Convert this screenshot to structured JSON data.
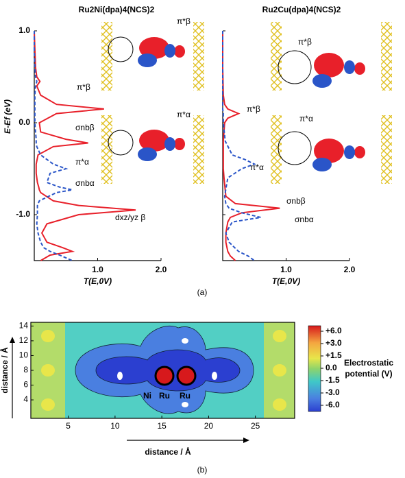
{
  "chart_data": [
    {
      "type": "line",
      "title": "Ru2Ni(dpa)4(NCS)2",
      "xlabel": "T(E,0V)",
      "ylabel": "E-Ef (eV)",
      "xlim": [
        0,
        2.0
      ],
      "xticks": [
        {
          "value": 1.0,
          "label": "1.0"
        },
        {
          "value": 2.0,
          "label": "2.0"
        }
      ],
      "ylim": [
        -1.5,
        1.0
      ],
      "yticks": [
        {
          "value": -1.0,
          "label": "-1.0"
        },
        {
          "value": 0.0,
          "label": "0.0"
        },
        {
          "value": 1.0,
          "label": "1.0"
        }
      ],
      "y": [
        1.0,
        0.8,
        0.6,
        0.5,
        0.45,
        0.4,
        0.3,
        0.2,
        0.15,
        0.1,
        0.0,
        -0.1,
        -0.18,
        -0.22,
        -0.26,
        -0.35,
        -0.45,
        -0.5,
        -0.55,
        -0.65,
        -0.7,
        -0.73,
        -0.76,
        -0.85,
        -0.9,
        -0.95,
        -1.0,
        -1.1,
        -1.2,
        -1.3,
        -1.36,
        -1.4,
        -1.44,
        -1.5
      ],
      "series": [
        {
          "name": "β",
          "color": "#e8202a",
          "dash": false,
          "values": [
            0,
            0.01,
            0.02,
            0.04,
            0.09,
            0.04,
            0.1,
            0.35,
            1.1,
            0.35,
            0.08,
            0.1,
            0.5,
            0.85,
            0.3,
            0.06,
            0.03,
            0.03,
            0.03,
            0.05,
            0.07,
            0.08,
            0.1,
            0.3,
            0.7,
            1.6,
            0.7,
            0.2,
            0.12,
            0.2,
            0.45,
            0.6,
            0.25,
            0.1
          ]
        },
        {
          "name": "α",
          "color": "#2a55c8",
          "dash": true,
          "values": [
            0,
            0,
            0.01,
            0.02,
            0.04,
            0.02,
            0.01,
            0.01,
            0.01,
            0.01,
            0.01,
            0.02,
            0.03,
            0.03,
            0.04,
            0.1,
            0.3,
            0.5,
            0.25,
            0.2,
            0.4,
            0.6,
            0.35,
            0.08,
            0.05,
            0.05,
            0.05,
            0.04,
            0.06,
            0.1,
            0.15,
            0.25,
            0.4,
            0.6
          ]
        }
      ],
      "annotations": [
        "π*β",
        "σnbβ",
        "π*α",
        "σnbα",
        "dxz/yz β"
      ],
      "insets": [
        "π*β",
        "π*α"
      ]
    },
    {
      "type": "line",
      "title": "Ru2Cu(dpa)4(NCS)2",
      "xlabel": "T(E,0V)",
      "xlim": [
        0,
        2.0
      ],
      "xticks": [
        {
          "value": 1.0,
          "label": "1.0"
        },
        {
          "value": 2.0,
          "label": "2.0"
        }
      ],
      "ylim": [
        -1.5,
        1.0
      ],
      "yticks": [
        -1,
        0,
        1
      ],
      "y": [
        1.0,
        0.6,
        0.3,
        0.2,
        0.15,
        0.1,
        0.05,
        0.0,
        -0.2,
        -0.35,
        -0.4,
        -0.45,
        -0.5,
        -0.6,
        -0.8,
        -0.88,
        -0.93,
        -0.98,
        -1.03,
        -1.08,
        -1.2,
        -1.3,
        -1.4,
        -1.45,
        -1.5
      ],
      "series": [
        {
          "name": "β",
          "color": "#e8202a",
          "dash": false,
          "values": [
            0,
            0,
            0.01,
            0.03,
            0.08,
            0.25,
            0.08,
            0.03,
            0.01,
            0.01,
            0.01,
            0.01,
            0.01,
            0.02,
            0.05,
            0.2,
            0.9,
            0.3,
            0.12,
            0.08,
            0.05,
            0.05,
            0.08,
            0.12,
            0.2
          ]
        },
        {
          "name": "α",
          "color": "#2a55c8",
          "dash": true,
          "values": [
            0,
            0,
            0,
            0,
            0,
            0.01,
            0.01,
            0.01,
            0.04,
            0.15,
            0.35,
            0.5,
            0.3,
            0.08,
            0.03,
            0.05,
            0.1,
            0.3,
            0.6,
            0.15,
            0.05,
            0.1,
            0.25,
            0.4,
            0.5
          ]
        }
      ],
      "annotations": [
        "π*β",
        "π*α",
        "σnbβ",
        "σnbα"
      ],
      "insets": [
        "π*β",
        "π*α"
      ]
    },
    {
      "type": "contour",
      "xlabel": "distance / Å",
      "ylabel": "distance / Å",
      "xlim": [
        1,
        29.2
      ],
      "xticks": [
        5,
        10,
        15,
        20,
        25
      ],
      "ylim": [
        1.5,
        14.5
      ],
      "yticks": [
        4,
        6,
        8,
        10,
        12,
        14
      ],
      "colorbar_label": "Electrostatic potential (V)",
      "colorbar_ticks": [
        {
          "value": 6.0,
          "label": "+6.0"
        },
        {
          "value": 3.0,
          "label": "+3.0"
        },
        {
          "value": 1.5,
          "label": "+1.5"
        },
        {
          "value": 0.0,
          "label": "0.0"
        },
        {
          "value": -1.5,
          "label": "-1.5"
        },
        {
          "value": -3.0,
          "label": "-3.0"
        },
        {
          "value": -6.0,
          "label": "-6.0"
        }
      ],
      "atoms": [
        "Ni",
        "Ru",
        "Ru"
      ]
    }
  ],
  "panel_labels": [
    "(a)",
    "(b)"
  ]
}
